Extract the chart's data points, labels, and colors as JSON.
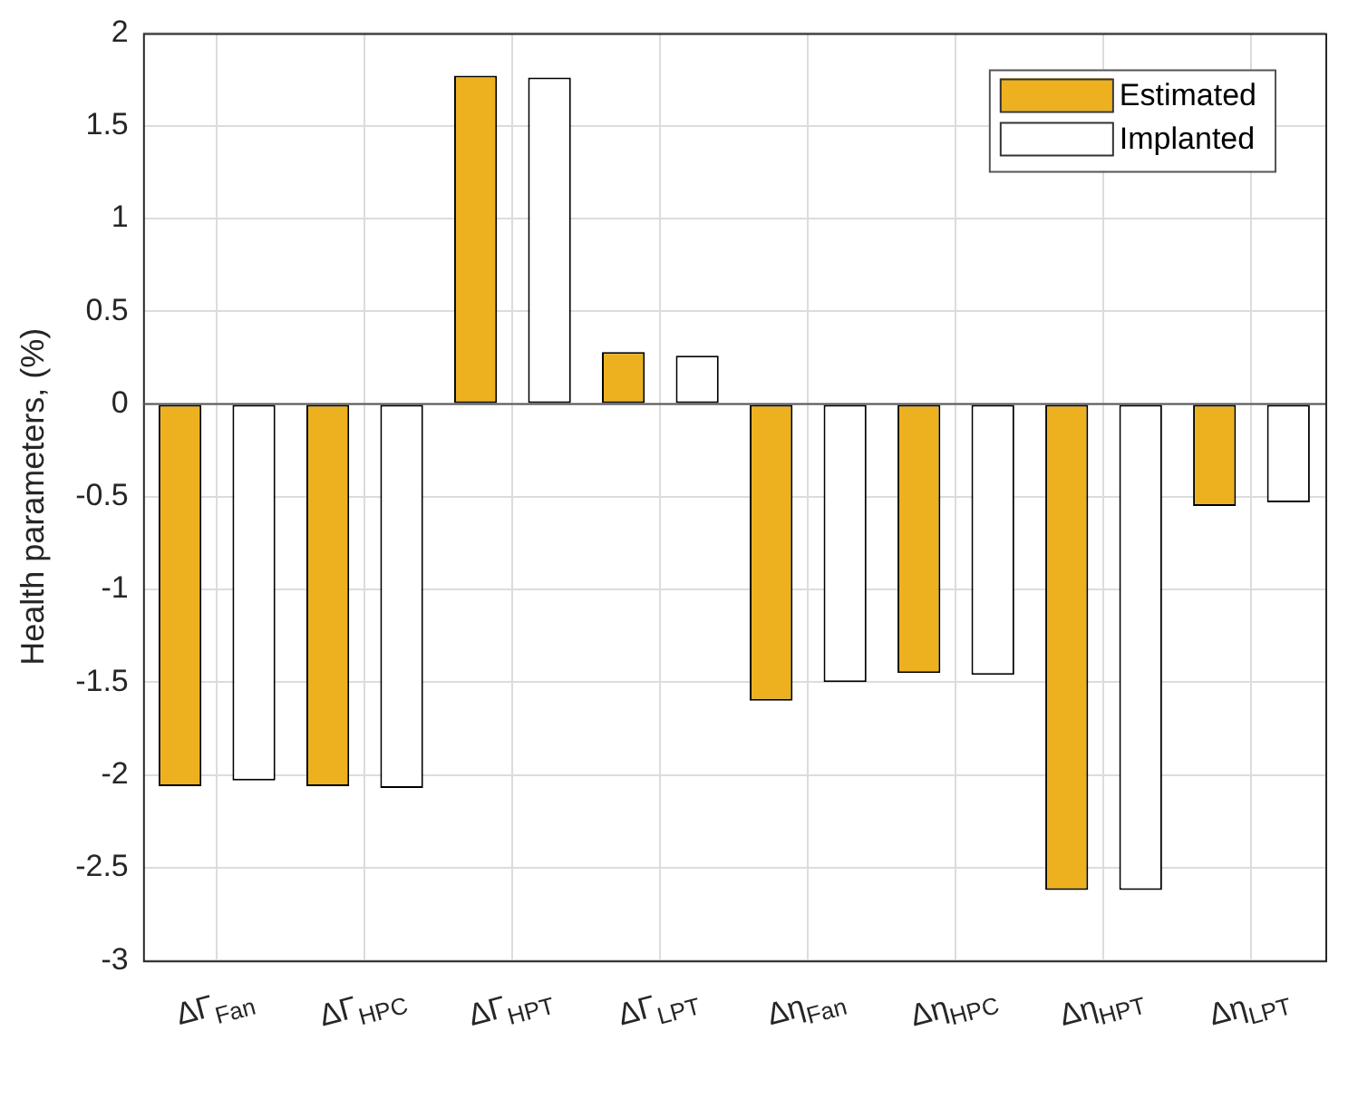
{
  "chart_data": {
    "type": "bar",
    "ylabel": "Health parameters, (%)",
    "categories": [
      "ΔΓ$_{Fan}$",
      "ΔΓ$_{HPC}$",
      "ΔΓ$_{HPT}$",
      "ΔΓ$_{LPT}$",
      "Δη$_{Fan}$",
      "Δη$_{HPC}$",
      "Δη$_{HPT}$",
      "Δη$_{LPT}$"
    ],
    "series": [
      {
        "name": "Estimated",
        "color": "#edb120",
        "values": [
          -2.06,
          -2.06,
          1.77,
          0.28,
          -1.6,
          -1.45,
          -2.62,
          -0.55
        ]
      },
      {
        "name": "Implanted",
        "color": "#ffffff",
        "values": [
          -2.03,
          -2.07,
          1.76,
          0.26,
          -1.5,
          -1.46,
          -2.62,
          -0.53
        ]
      }
    ],
    "ylim": [
      -3,
      2
    ],
    "yticks": [
      -3,
      -2.5,
      -2,
      -1.5,
      -1,
      -0.5,
      0,
      0.5,
      1,
      1.5,
      2
    ],
    "grid": true,
    "legend": "top right"
  }
}
